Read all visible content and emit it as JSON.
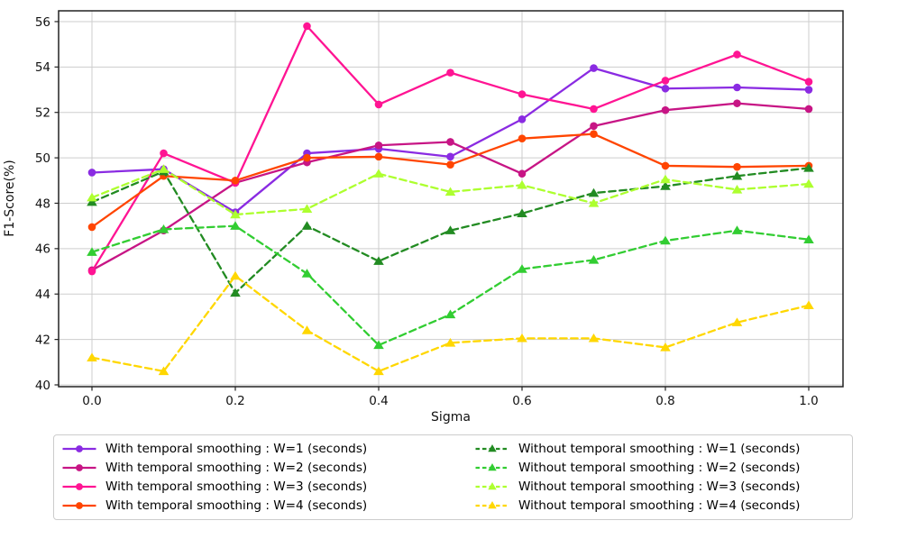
{
  "figure": {
    "background": "#ffffff",
    "grid_color": "#cdcdcd",
    "spine_color": "#222222",
    "text_color": "#111111"
  },
  "chart_data": {
    "type": "line",
    "title": "",
    "xlabel": "Sigma",
    "ylabel": "F1-Score(%)",
    "xlim": [
      -0.047,
      1.048
    ],
    "ylim": [
      39.9,
      56.5
    ],
    "grid": true,
    "legend_position": "below",
    "legend_columns": 2,
    "x_tick_labels": [
      "0.0",
      "0.2",
      "0.4",
      "0.6",
      "0.8",
      "1.0"
    ],
    "x_tick_values": [
      0.0,
      0.2,
      0.4,
      0.6,
      0.8,
      1.0
    ],
    "y_tick_labels": [
      "40",
      "42",
      "44",
      "46",
      "48",
      "50",
      "52",
      "54",
      "56"
    ],
    "y_tick_values": [
      40,
      42,
      44,
      46,
      48,
      50,
      52,
      54,
      56
    ],
    "x": [
      0.0,
      0.1,
      0.2,
      0.3,
      0.4,
      0.5,
      0.6,
      0.7,
      0.8,
      0.9,
      1.0
    ],
    "series": [
      {
        "id": "with-w1",
        "name": "With temporal smoothing : W=1 (seconds)",
        "color": "#8A2BE2",
        "line_style": "solid",
        "marker": "circle",
        "values": [
          49.35,
          49.5,
          47.6,
          50.2,
          50.4,
          50.05,
          51.7,
          53.95,
          53.05,
          53.1,
          53.0
        ]
      },
      {
        "id": "with-w2",
        "name": "With temporal smoothing : W=2 (seconds)",
        "color": "#C71585",
        "line_style": "solid",
        "marker": "circle",
        "values": [
          45.05,
          46.8,
          48.9,
          49.8,
          50.55,
          50.7,
          49.3,
          51.4,
          52.1,
          52.4,
          52.15
        ]
      },
      {
        "id": "with-w3",
        "name": "With temporal smoothing : W=3 (seconds)",
        "color": "#FF1493",
        "line_style": "solid",
        "marker": "circle",
        "values": [
          45.0,
          50.2,
          48.9,
          55.8,
          52.35,
          53.75,
          52.8,
          52.15,
          53.4,
          54.55,
          53.35
        ]
      },
      {
        "id": "with-w4",
        "name": "With temporal smoothing : W=4 (seconds)",
        "color": "#FF4500",
        "line_style": "solid",
        "marker": "circle",
        "values": [
          46.95,
          49.2,
          49.0,
          50.0,
          50.05,
          49.7,
          50.85,
          51.05,
          49.65,
          49.6,
          49.65
        ]
      },
      {
        "id": "without-w1",
        "name": "Without temporal smoothing : W=1 (seconds)",
        "color": "#228B22",
        "line_style": "dashed",
        "marker": "triangle",
        "values": [
          48.05,
          49.4,
          44.05,
          47.0,
          45.45,
          46.8,
          47.55,
          48.45,
          48.75,
          49.2,
          49.55
        ]
      },
      {
        "id": "without-w2",
        "name": "Without temporal smoothing : W=2 (seconds)",
        "color": "#32CD32",
        "line_style": "dashed",
        "marker": "triangle",
        "values": [
          45.85,
          46.85,
          47.0,
          44.9,
          41.75,
          43.1,
          45.1,
          45.5,
          46.35,
          46.8,
          46.4
        ]
      },
      {
        "id": "without-w3",
        "name": "Without temporal smoothing : W=3 (seconds)",
        "color": "#ADFF2F",
        "line_style": "dashed",
        "marker": "triangle",
        "values": [
          48.25,
          49.5,
          47.5,
          47.75,
          49.3,
          48.5,
          48.8,
          48.0,
          49.05,
          48.6,
          48.85
        ]
      },
      {
        "id": "without-w4",
        "name": "Without temporal smoothing : W=4 (seconds)",
        "color": "#FFD700",
        "line_style": "dashed",
        "marker": "triangle",
        "values": [
          41.2,
          40.6,
          44.8,
          42.4,
          40.6,
          41.85,
          42.05,
          42.05,
          41.65,
          42.75,
          43.5
        ]
      }
    ]
  }
}
